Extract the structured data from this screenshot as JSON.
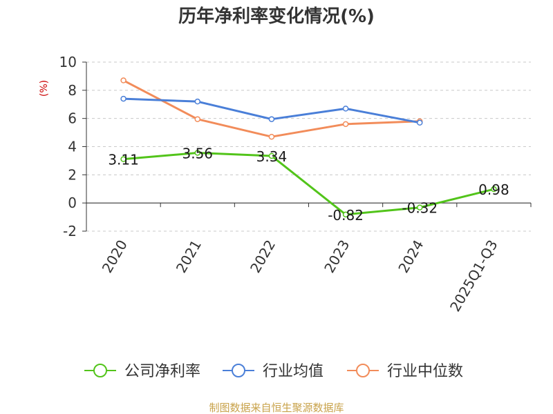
{
  "chart_data": {
    "type": "line",
    "title": "历年净利率变化情况(%)",
    "ylabel": "(%)",
    "xlabel": "",
    "categories": [
      "2020",
      "2021",
      "2022",
      "2023",
      "2024",
      "2025Q1-Q3"
    ],
    "ylim": [
      -2,
      10
    ],
    "yticks": [
      -2,
      0,
      2,
      4,
      6,
      8,
      10
    ],
    "grid": true,
    "legend_position": "bottom",
    "series": [
      {
        "name": "公司净利率",
        "color": "#52c41a",
        "values": [
          3.11,
          3.56,
          3.34,
          -0.82,
          -0.32,
          0.98
        ],
        "labels": [
          "3.11",
          "3.56",
          "3.34",
          "-0.82",
          "-0.32",
          "0.98"
        ]
      },
      {
        "name": "行业均值",
        "color": "#4a7fd8",
        "values": [
          7.4,
          7.2,
          5.95,
          6.7,
          5.7,
          null
        ]
      },
      {
        "name": "行业中位数",
        "color": "#f28c5a",
        "values": [
          8.7,
          5.95,
          4.7,
          5.6,
          5.8,
          null
        ]
      }
    ]
  },
  "source": "制图数据来自恒生聚源数据库"
}
